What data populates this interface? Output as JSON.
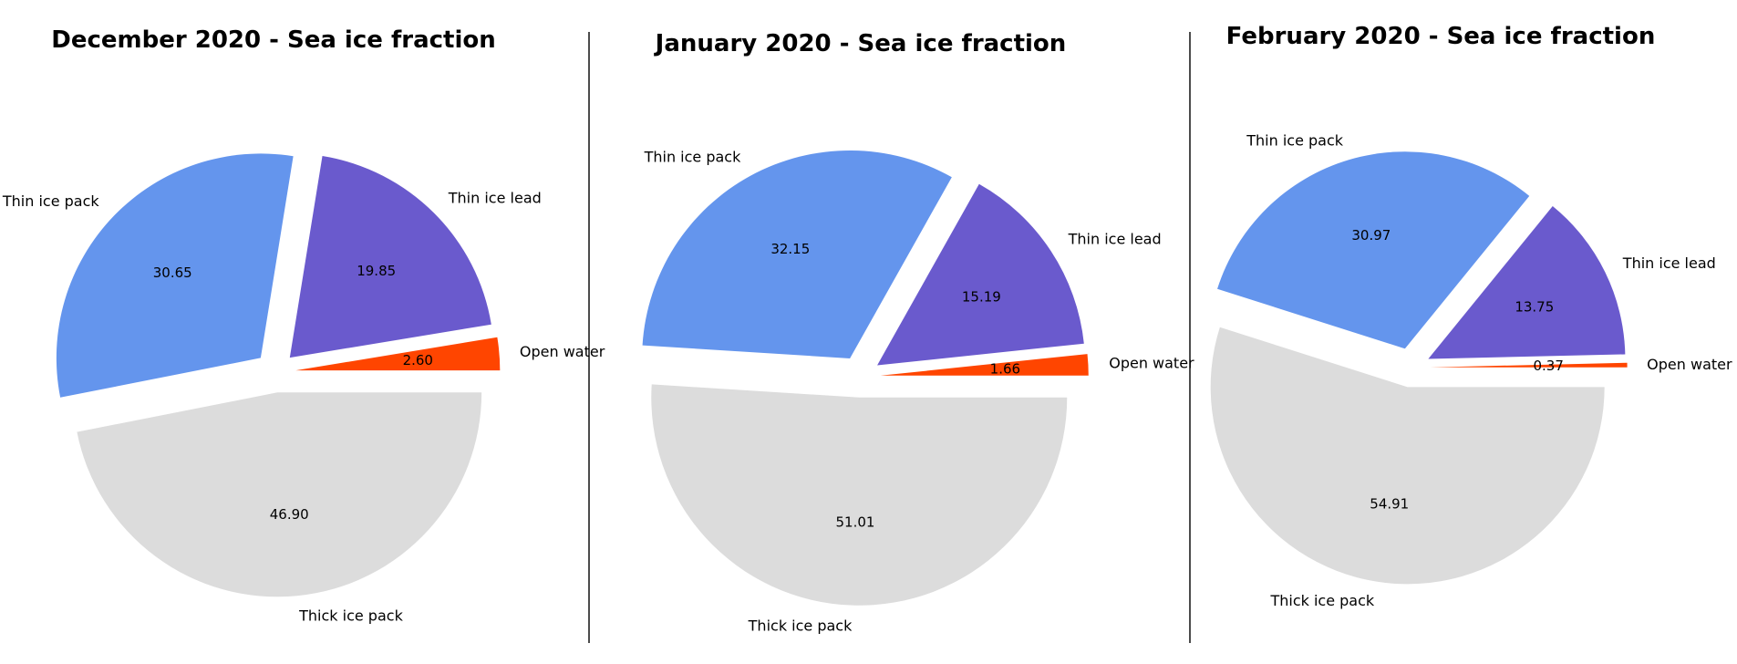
{
  "chart_data": [
    {
      "type": "pie",
      "title": "December 2020 - Sea ice fraction",
      "slices": [
        {
          "label": "Open water",
          "value": 2.6,
          "value_text": "2.60",
          "color": "#ff4500"
        },
        {
          "label": "Thin ice lead",
          "value": 19.85,
          "value_text": "19.85",
          "color": "#6a5acd"
        },
        {
          "label": "Thin ice pack",
          "value": 30.65,
          "value_text": "30.65",
          "color": "#6495ed"
        },
        {
          "label": "Thick ice pack",
          "value": 46.9,
          "value_text": "46.90",
          "color": "#dcdcdc"
        }
      ]
    },
    {
      "type": "pie",
      "title": "January 2020 - Sea ice fraction",
      "slices": [
        {
          "label": "Open water",
          "value": 1.66,
          "value_text": "1.66",
          "color": "#ff4500"
        },
        {
          "label": "Thin ice lead",
          "value": 15.19,
          "value_text": "15.19",
          "color": "#6a5acd"
        },
        {
          "label": "Thin ice pack",
          "value": 32.15,
          "value_text": "32.15",
          "color": "#6495ed"
        },
        {
          "label": "Thick ice pack",
          "value": 51.01,
          "value_text": "51.01",
          "color": "#dcdcdc"
        }
      ]
    },
    {
      "type": "pie",
      "title": "February 2020 - Sea ice fraction",
      "slices": [
        {
          "label": "Open water",
          "value": 0.37,
          "value_text": "0.37",
          "color": "#ff4500"
        },
        {
          "label": "Thin ice lead",
          "value": 13.75,
          "value_text": "13.75",
          "color": "#6a5acd"
        },
        {
          "label": "Thin ice pack",
          "value": 30.97,
          "value_text": "30.97",
          "color": "#6495ed"
        },
        {
          "label": "Thick ice pack",
          "value": 54.91,
          "value_text": "54.91",
          "color": "#dcdcdc"
        }
      ]
    }
  ]
}
